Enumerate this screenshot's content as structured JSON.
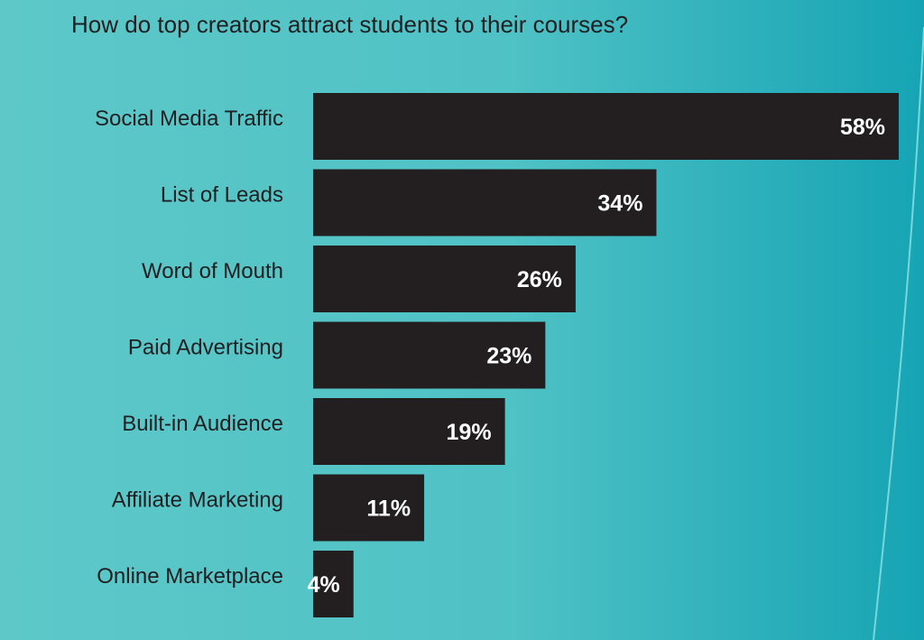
{
  "chart_data": {
    "type": "bar",
    "orientation": "horizontal",
    "title": "How do top creators attract students to their courses?",
    "categories": [
      "Social Media Traffic",
      "List of Leads",
      "Word of Mouth",
      "Paid Advertising",
      "Built-in Audience",
      "Affiliate Marketing",
      "Online Marketplace"
    ],
    "values": [
      58,
      34,
      26,
      23,
      19,
      11,
      4
    ],
    "data_labels": [
      "58%",
      "34%",
      "26%",
      "23%",
      "19%",
      "11%",
      "4%"
    ],
    "unit": "%",
    "xlim": [
      0,
      58
    ],
    "grid": false,
    "legend": "none"
  },
  "colors": {
    "background_left": "#5ec8c8",
    "background_right": "#16a4b4",
    "bar": "#231f20",
    "bar_label": "#ffffff",
    "category_label": "#1f1f22"
  }
}
